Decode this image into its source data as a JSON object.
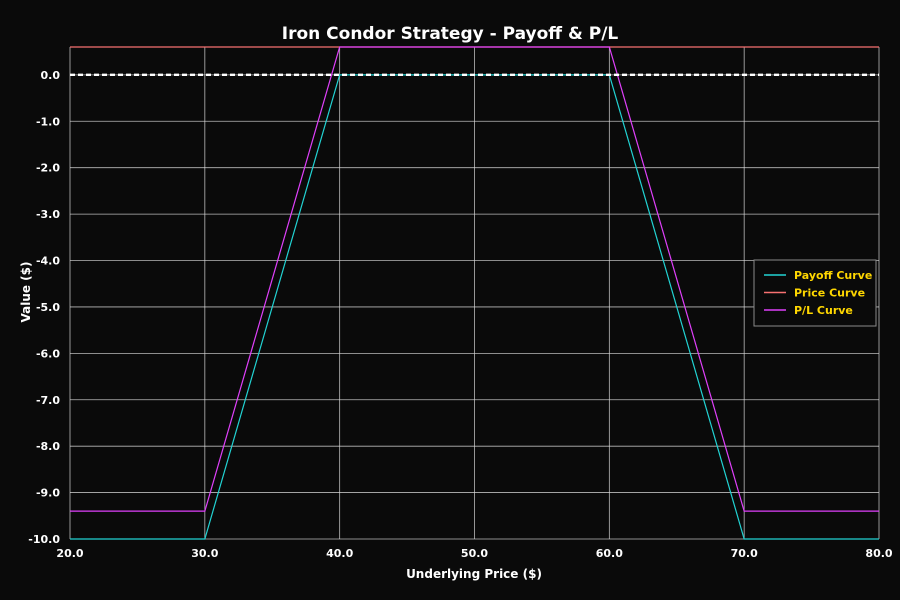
{
  "chart_data": {
    "type": "line",
    "title": "Iron Condor Strategy - Payoff & P/L",
    "xlabel": "Underlying Price ($)",
    "ylabel": "Value ($)",
    "xlim": [
      20,
      80
    ],
    "ylim": [
      -10,
      0.6
    ],
    "xticks": [
      "20.0",
      "30.0",
      "40.0",
      "50.0",
      "60.0",
      "70.0",
      "80.0"
    ],
    "yticks": [
      "0.0",
      "-1.0",
      "-2.0",
      "-3.0",
      "-4.0",
      "-5.0",
      "-6.0",
      "-7.0",
      "-8.0",
      "-9.0",
      "-10.0"
    ],
    "grid": true,
    "legend_position": "right",
    "series": [
      {
        "name": "Payoff Curve",
        "color": "#22d3d3",
        "x": [
          20,
          30,
          40,
          60,
          70,
          80
        ],
        "y": [
          -10,
          -10,
          0,
          0,
          -10,
          -10
        ]
      },
      {
        "name": "Price Curve",
        "color": "#f87171",
        "x": [
          20,
          80
        ],
        "y": [
          0.6,
          0.6
        ]
      },
      {
        "name": "P/L Curve",
        "color": "#e040fb",
        "x": [
          20,
          30,
          40,
          60,
          70,
          80
        ],
        "y": [
          -9.4,
          -9.4,
          0.6,
          0.6,
          -9.4,
          -9.4
        ]
      }
    ],
    "zero_line": {
      "y": 0,
      "color": "#ffffff",
      "style": "dashed"
    }
  },
  "colors": {
    "background": "#0a0a0a",
    "grid": "#d9d9d9",
    "legend_text": "#ffd700",
    "text": "#ffffff"
  }
}
